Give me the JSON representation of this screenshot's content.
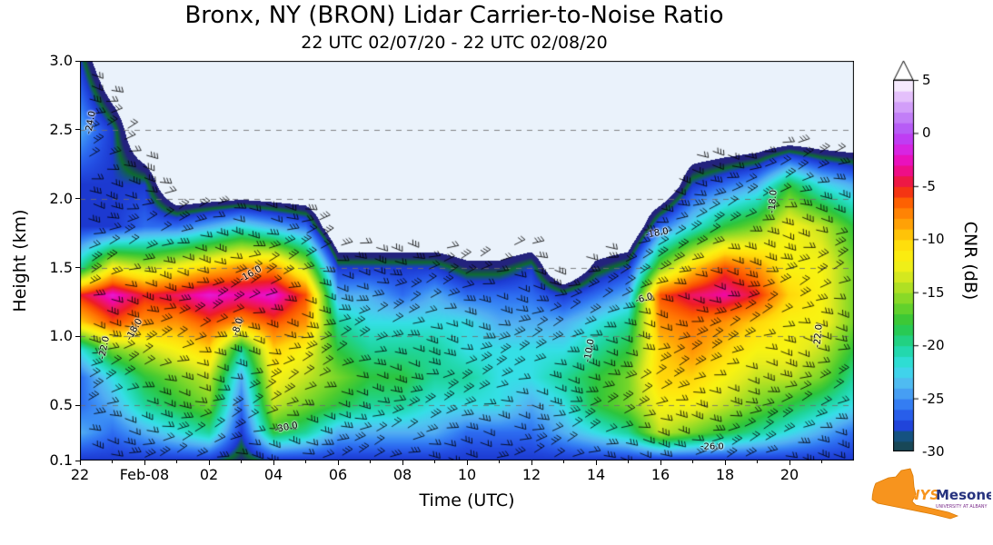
{
  "chart_data": {
    "type": "heatmap",
    "title": "Bronx, NY (BRON) Lidar Carrier-to-Noise Ratio",
    "subtitle": "22 UTC 02/07/20 - 22 UTC 02/08/20",
    "xlabel": "Time (UTC)",
    "ylabel": "Height (km)",
    "colorbar_label": "CNR (dB)",
    "ylim": [
      0.1,
      3.0
    ],
    "x_hours_span": 24,
    "x_ticks": [
      {
        "hour": 0,
        "label": "22"
      },
      {
        "hour": 2,
        "label": "Feb-08"
      },
      {
        "hour": 4,
        "label": "02"
      },
      {
        "hour": 6,
        "label": "04"
      },
      {
        "hour": 8,
        "label": "06"
      },
      {
        "hour": 10,
        "label": "08"
      },
      {
        "hour": 12,
        "label": "10"
      },
      {
        "hour": 14,
        "label": "12"
      },
      {
        "hour": 16,
        "label": "14"
      },
      {
        "hour": 18,
        "label": "16"
      },
      {
        "hour": 20,
        "label": "18"
      },
      {
        "hour": 22,
        "label": "20"
      }
    ],
    "y_ticks": [
      {
        "km": 0.1,
        "label": "0.1"
      },
      {
        "km": 0.5,
        "label": "0.5"
      },
      {
        "km": 1.0,
        "label": "1.0"
      },
      {
        "km": 1.5,
        "label": "1.5"
      },
      {
        "km": 2.0,
        "label": "2.0"
      },
      {
        "km": 2.5,
        "label": "2.5"
      },
      {
        "km": 3.0,
        "label": "3.0"
      }
    ],
    "gridline_heights_km": [
      0.5,
      1.0,
      1.5,
      2.0,
      2.5
    ],
    "heights_km": [
      0.1,
      0.3,
      0.5,
      0.7,
      0.9,
      1.1,
      1.3,
      1.5,
      1.8,
      2.1,
      2.5,
      3.0
    ],
    "hours": [
      0,
      1,
      2,
      3,
      4,
      5,
      6,
      7,
      8,
      9,
      10,
      11,
      12,
      13,
      14,
      15,
      16,
      17,
      18,
      19,
      20,
      21,
      22,
      23,
      24
    ],
    "cnr_db_grid_rows_by_height": [
      [
        -28,
        -28,
        -28,
        -28,
        -28,
        -30,
        -28,
        -28,
        -28,
        -28,
        -28,
        -28,
        -28,
        -28,
        -28,
        -28,
        -28,
        -28,
        -28,
        -28,
        -28,
        -28,
        -28,
        -28,
        -28
      ],
      [
        -24,
        -26,
        -24,
        -22,
        -20,
        -28,
        -18,
        -20,
        -24,
        -24,
        -24,
        -24,
        -26,
        -26,
        -26,
        -24,
        -22,
        -20,
        -14,
        -16,
        -18,
        -20,
        -22,
        -24,
        -26
      ],
      [
        -26,
        -24,
        -20,
        -18,
        -16,
        -26,
        -14,
        -16,
        -18,
        -20,
        -20,
        -22,
        -22,
        -22,
        -24,
        -22,
        -18,
        -16,
        -12,
        -12,
        -14,
        -16,
        -18,
        -20,
        -22
      ],
      [
        -26,
        -22,
        -18,
        -16,
        -14,
        -24,
        -12,
        -14,
        -16,
        -18,
        -18,
        -20,
        -20,
        -22,
        -22,
        -20,
        -18,
        -16,
        -10,
        -10,
        -12,
        -14,
        -14,
        -16,
        -20
      ],
      [
        -22,
        -16,
        -14,
        -12,
        -10,
        -20,
        -10,
        -12,
        -18,
        -20,
        -20,
        -20,
        -22,
        -22,
        -22,
        -22,
        -20,
        -18,
        -10,
        -8,
        -10,
        -12,
        -12,
        -14,
        -18
      ],
      [
        -10,
        -6,
        -8,
        -8,
        -6,
        -8,
        -6,
        -8,
        -20,
        -22,
        -22,
        -22,
        -22,
        -24,
        -24,
        -24,
        -22,
        -20,
        -8,
        -7,
        -8,
        -10,
        -12,
        -12,
        -16
      ],
      [
        -5,
        -2,
        -5,
        -4,
        -2,
        -3,
        -2,
        -6,
        -24,
        -24,
        -26,
        -24,
        -26,
        -26,
        -26,
        -28,
        -26,
        -24,
        -6,
        -4,
        -3,
        -5,
        -10,
        -12,
        -16
      ],
      [
        -20,
        -12,
        -14,
        -12,
        -10,
        -8,
        -8,
        -14,
        -28,
        -28,
        -28,
        -28,
        -30,
        -30,
        -28,
        null,
        -30,
        -28,
        -16,
        -10,
        -6,
        -8,
        -12,
        -12,
        -16
      ],
      [
        -28,
        -28,
        -26,
        -26,
        -24,
        -22,
        -24,
        -26,
        null,
        null,
        null,
        null,
        null,
        null,
        null,
        null,
        null,
        null,
        -26,
        -22,
        -18,
        -16,
        -12,
        -14,
        -18
      ],
      [
        -28,
        -28,
        -28,
        null,
        null,
        null,
        null,
        null,
        null,
        null,
        null,
        null,
        null,
        null,
        null,
        null,
        null,
        null,
        null,
        -28,
        -26,
        -24,
        -18,
        -22,
        -24
      ],
      [
        -24,
        -28,
        null,
        null,
        null,
        null,
        null,
        null,
        null,
        null,
        null,
        null,
        null,
        null,
        null,
        null,
        null,
        null,
        null,
        null,
        null,
        null,
        null,
        null,
        null
      ],
      [
        -28,
        null,
        null,
        null,
        null,
        null,
        null,
        null,
        null,
        null,
        null,
        null,
        null,
        null,
        null,
        null,
        null,
        null,
        null,
        null,
        null,
        null,
        null,
        null,
        null
      ]
    ],
    "colorbar": {
      "min": -30,
      "max": 5,
      "step": 1,
      "tick_values": [
        5,
        0,
        -5,
        -10,
        -15,
        -20,
        -25,
        -30
      ],
      "over_arrow": true
    },
    "colormap_anchors": [
      "#23237d",
      "#0e6b30",
      "#1c39d0",
      "#2450e4",
      "#2d6cf0",
      "#3b8ef5",
      "#52aef2",
      "#4cc8f0",
      "#35dfe6",
      "#27dcc0",
      "#1fd49a",
      "#25cf6a",
      "#2cc53e",
      "#4ecc2e",
      "#76d62a",
      "#9cdd25",
      "#c3e421",
      "#e6ec1e",
      "#f8f312",
      "#ffe60e",
      "#ffd60a",
      "#ffb007",
      "#ff9205",
      "#ff7403",
      "#fb4f02",
      "#ee1c25",
      "#ed1566",
      "#f007a8",
      "#e31cd3",
      "#cb2ff2",
      "#b44bf5",
      "#bb6ef7",
      "#c98ef8",
      "#dcaefa",
      "#ecd3fc",
      "#ffffff"
    ],
    "background_color": "#eaf2fb",
    "contour_labels": [
      {
        "text": "-24.0",
        "hour": 0.35,
        "km": 2.55,
        "rot": -80
      },
      {
        "text": "-22.0",
        "hour": 0.75,
        "km": 0.92,
        "rot": -78
      },
      {
        "text": "-18.0",
        "hour": 1.7,
        "km": 1.05,
        "rot": -60
      },
      {
        "text": "-8.0",
        "hour": 4.9,
        "km": 1.07,
        "rot": -72
      },
      {
        "text": "-16.0",
        "hour": 5.3,
        "km": 1.45,
        "rot": -30
      },
      {
        "text": "-30.0",
        "hour": 6.4,
        "km": 0.34,
        "rot": -12
      },
      {
        "text": "-10.0",
        "hour": 15.8,
        "km": 0.9,
        "rot": -80
      },
      {
        "text": "-6.0",
        "hour": 17.5,
        "km": 1.27,
        "rot": -15
      },
      {
        "text": "-18.0",
        "hour": 17.9,
        "km": 1.75,
        "rot": -10
      },
      {
        "text": "-26.0",
        "hour": 19.6,
        "km": 0.2,
        "rot": 0
      },
      {
        "text": "-18.0",
        "hour": 21.5,
        "km": 1.98,
        "rot": -85
      },
      {
        "text": "-22.0",
        "hour": 22.9,
        "km": 1.0,
        "rot": -85
      }
    ],
    "overlays": {
      "wind_barbs": true,
      "contour_lines": true
    }
  },
  "logo": {
    "nys": "NYS",
    "mesonet": "Mesonet",
    "tagline": "UNIVERSITY AT ALBANY",
    "state_color": "#f7941e",
    "mesonet_color": "#26327e",
    "tagline_color": "#7b2d8b"
  }
}
